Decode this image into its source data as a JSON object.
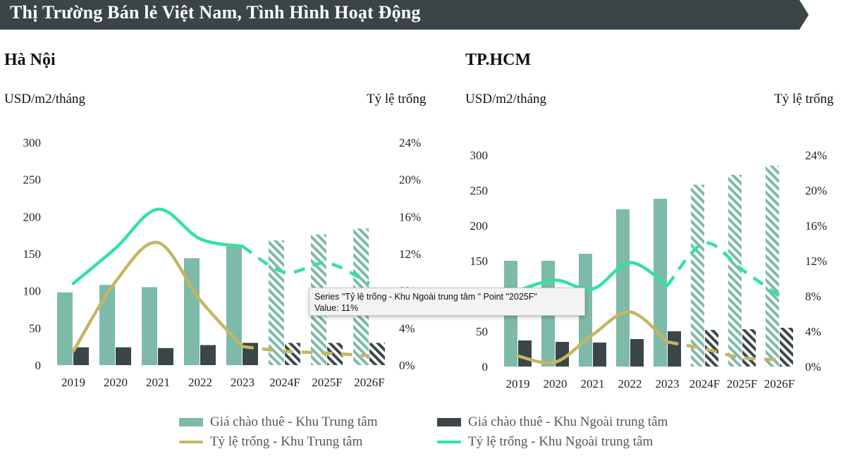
{
  "banner": {
    "title": "Thị Trường Bán lẻ Việt Nam, Tình Hình Hoạt Động"
  },
  "colors": {
    "banner_bg": "#3b4548",
    "rent_central": "#7dbaa9",
    "rent_outer": "#3b4649",
    "vacancy_central": "#c4b664",
    "vacancy_outer": "#33e39d"
  },
  "legend": {
    "rent_central": "Giá chào thuê - Khu Trung tâm",
    "rent_outer": "Giá chào thuê - Khu Ngoài trung tâm",
    "vacancy_central": "Tỷ lệ trống - Khu Trung tâm",
    "vacancy_outer": "Tỷ lệ trống - Khu Ngoài trung tâm"
  },
  "tooltip": {
    "line1": "Series \"Tỷ lệ trống - Khu Ngoài trung tâm \" Point \"2025F\"",
    "line2": "Value: 11%"
  },
  "charts": {
    "hanoi": {
      "title": "Hà Nội",
      "left_unit": "USD/m2/tháng",
      "right_unit": "Tỷ lệ trống"
    },
    "hcmc": {
      "title": "TP.HCM",
      "left_unit": "USD/m2/tháng",
      "right_unit": "Tỷ lệ trống"
    }
  },
  "chart_data": [
    {
      "type": "bar",
      "title": "Hà Nội",
      "categories": [
        "2019",
        "2020",
        "2021",
        "2022",
        "2023",
        "2024F",
        "2025F",
        "2026F"
      ],
      "forecast_from_index": 5,
      "ylabel": "USD/m2/tháng",
      "ylim": [
        0,
        300
      ],
      "yticks": [
        "0",
        "50",
        "100",
        "150",
        "200",
        "250",
        "300"
      ],
      "y2label": "Tỷ lệ trống",
      "y2lim": [
        0,
        24
      ],
      "y2ticks": [
        "0%",
        "4%",
        "8%",
        "12%",
        "16%",
        "20%",
        "24%"
      ],
      "series": [
        {
          "name": "Giá chào thuê - Khu Trung tâm",
          "kind": "bar",
          "axis": "left",
          "values": [
            98,
            108,
            105,
            144,
            162,
            168,
            176,
            184
          ]
        },
        {
          "name": "Giá chào thuê - Khu Ngoài trung tâm",
          "kind": "bar",
          "axis": "left",
          "values": [
            24,
            24,
            23,
            27,
            30,
            30,
            30,
            30
          ]
        },
        {
          "name": "Tỷ lệ trống - Khu Trung tâm",
          "kind": "line",
          "axis": "right",
          "values": [
            1.5,
            9.0,
            13.2,
            7.0,
            2.0,
            1.5,
            1.3,
            1.0
          ]
        },
        {
          "name": "Tỷ lệ trống - Khu Ngoài trung tâm",
          "kind": "line",
          "axis": "right",
          "values": [
            8.8,
            12.6,
            16.8,
            13.6,
            12.8,
            10.0,
            11.0,
            8.8
          ]
        }
      ]
    },
    {
      "type": "bar",
      "title": "TP.HCM",
      "categories": [
        "2019",
        "2020",
        "2021",
        "2022",
        "2023",
        "2024F",
        "2025F",
        "2026F"
      ],
      "forecast_from_index": 5,
      "ylabel": "USD/m2/tháng",
      "ylim": [
        0,
        300
      ],
      "yticks": [
        "0",
        "50",
        "100",
        "150",
        "200",
        "250",
        "300"
      ],
      "y2label": "Tỷ lệ trống",
      "y2lim": [
        0,
        24
      ],
      "y2ticks": [
        "0%",
        "4%",
        "8%",
        "12%",
        "16%",
        "20%",
        "24%"
      ],
      "series": [
        {
          "name": "Giá chào thuê - Khu Trung tâm",
          "kind": "bar",
          "axis": "left",
          "values": [
            150,
            150,
            160,
            223,
            238,
            258,
            272,
            285
          ]
        },
        {
          "name": "Giá chào thuê - Khu Ngoài trung tâm",
          "kind": "bar",
          "axis": "left",
          "values": [
            37,
            35,
            34,
            39,
            50,
            52,
            53,
            55
          ]
        },
        {
          "name": "Tỷ lệ trống - Khu Trung tâm",
          "kind": "line",
          "axis": "right",
          "values": [
            1.2,
            0.5,
            3.6,
            6.2,
            2.8,
            2.0,
            1.0,
            0.8
          ]
        },
        {
          "name": "Tỷ lệ trống - Khu Ngoài trung tâm",
          "kind": "line",
          "axis": "right",
          "values": [
            8.6,
            9.8,
            8.8,
            11.8,
            9.2,
            14.0,
            11.0,
            8.0
          ]
        }
      ]
    }
  ]
}
